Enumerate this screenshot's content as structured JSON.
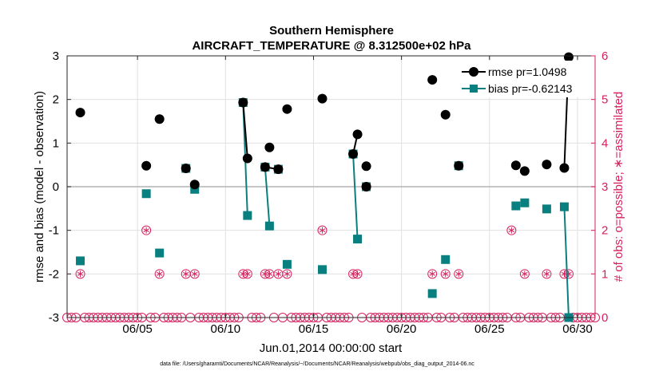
{
  "chart_data": {
    "type": "line",
    "title": "Southern Hemisphere",
    "subtitle": "AIRCRAFT_TEMPERATURE @ 8.312500e+02 hPa",
    "xlabel": "Jun.01,2014 00:00:00 start",
    "ylabel": "rmse and bias (model - observation)",
    "ylabel_right": "# of obs: o=possible; ∗=assimilated",
    "footnote": "data file: /Users/gharamti/Documents/NCAR/Reanalysis/~/Documents/NCAR/Reanalysis/webpub/obs_diag_output_2014-06.nc",
    "xlim": [
      1,
      31
    ],
    "ylim": [
      -3,
      3
    ],
    "ylim_right": [
      0,
      6
    ],
    "x_ticks": [
      5,
      10,
      15,
      20,
      25,
      30
    ],
    "x_tick_labels": [
      "06/05",
      "06/10",
      "06/15",
      "06/20",
      "06/25",
      "06/30"
    ],
    "y_ticks": [
      -3,
      -2,
      -1,
      0,
      1,
      2,
      3
    ],
    "y_tick_labels": [
      "-3",
      "-2",
      "-1",
      "0",
      "1",
      "2",
      "3"
    ],
    "y2_ticks": [
      0,
      1,
      2,
      3,
      4,
      5,
      6
    ],
    "y2_tick_labels": [
      "0",
      "1",
      "2",
      "3",
      "4",
      "5",
      "6"
    ],
    "colors": {
      "rmse": "#000000",
      "bias": "#0a7f7f",
      "obs": "#d6205e",
      "zero_line": "#b3b3b3",
      "grid": "#e0e0e0"
    },
    "legend_position": "top-right",
    "series": [
      {
        "name": "rmse pr=1.0498",
        "axis": "left",
        "marker": "circle",
        "points": [
          [
            1.75,
            1.7
          ],
          [
            5.5,
            0.48
          ],
          [
            6.25,
            1.55
          ],
          [
            7.75,
            0.42
          ],
          [
            8.25,
            0.05
          ],
          [
            11.0,
            1.93
          ],
          [
            11.25,
            0.65
          ],
          [
            12.25,
            0.45
          ],
          [
            12.5,
            0.9
          ],
          [
            13.0,
            0.4
          ],
          [
            13.5,
            1.78
          ],
          [
            15.5,
            2.02
          ],
          [
            17.25,
            0.75
          ],
          [
            17.5,
            1.2
          ],
          [
            18.0,
            0.47
          ],
          [
            18.0,
            0.0
          ],
          [
            21.75,
            2.45
          ],
          [
            22.5,
            1.65
          ],
          [
            23.25,
            0.48
          ],
          [
            26.5,
            0.49
          ],
          [
            27.0,
            0.36
          ],
          [
            28.25,
            0.51
          ],
          [
            29.25,
            0.43
          ],
          [
            29.5,
            2.97
          ]
        ],
        "segments": [
          [
            5,
            6
          ],
          [
            7,
            9
          ],
          [
            12,
            13
          ],
          [
            22,
            23
          ]
        ]
      },
      {
        "name": "bias pr=-0.62143",
        "axis": "left",
        "marker": "square",
        "points": [
          [
            1.75,
            -1.7
          ],
          [
            5.5,
            -0.16
          ],
          [
            6.25,
            -1.52
          ],
          [
            7.75,
            0.42
          ],
          [
            8.25,
            -0.06
          ],
          [
            11.0,
            1.93
          ],
          [
            11.25,
            -0.66
          ],
          [
            12.25,
            0.45
          ],
          [
            12.5,
            -0.9
          ],
          [
            13.0,
            0.4
          ],
          [
            13.5,
            -1.78
          ],
          [
            15.5,
            -1.9
          ],
          [
            17.25,
            0.75
          ],
          [
            17.5,
            -1.2
          ],
          [
            18.0,
            0.0
          ],
          [
            21.75,
            -2.45
          ],
          [
            22.5,
            -1.67
          ],
          [
            23.25,
            0.48
          ],
          [
            26.5,
            -0.44
          ],
          [
            27.0,
            -0.37
          ],
          [
            28.25,
            -0.51
          ],
          [
            29.25,
            -0.46
          ],
          [
            29.5,
            -3.0
          ]
        ],
        "segments": [
          [
            5,
            6
          ],
          [
            7,
            8
          ],
          [
            12,
            13
          ],
          [
            21,
            22
          ]
        ]
      },
      {
        "name": "obs possible",
        "axis": "right",
        "marker": "circle-open",
        "points": [
          [
            1.0,
            0
          ],
          [
            1.25,
            0
          ],
          [
            1.5,
            0
          ],
          [
            1.75,
            1
          ],
          [
            2.0,
            0
          ],
          [
            2.25,
            0
          ],
          [
            2.5,
            0
          ],
          [
            2.75,
            0
          ],
          [
            3.0,
            0
          ],
          [
            3.25,
            0
          ],
          [
            3.5,
            0
          ],
          [
            3.75,
            0
          ],
          [
            4.0,
            0
          ],
          [
            4.25,
            0
          ],
          [
            4.5,
            0
          ],
          [
            4.75,
            0
          ],
          [
            5.0,
            0
          ],
          [
            5.25,
            0
          ],
          [
            5.5,
            2
          ],
          [
            5.75,
            0
          ],
          [
            6.0,
            0
          ],
          [
            6.25,
            1
          ],
          [
            6.5,
            0
          ],
          [
            6.75,
            0
          ],
          [
            7.0,
            0
          ],
          [
            7.25,
            0
          ],
          [
            7.5,
            0
          ],
          [
            7.75,
            1
          ],
          [
            8.0,
            0
          ],
          [
            8.25,
            1
          ],
          [
            8.5,
            0
          ],
          [
            8.75,
            0
          ],
          [
            9.0,
            0
          ],
          [
            9.25,
            0
          ],
          [
            9.5,
            0
          ],
          [
            9.75,
            0
          ],
          [
            10.0,
            0
          ],
          [
            10.25,
            0
          ],
          [
            10.5,
            0
          ],
          [
            10.75,
            0
          ],
          [
            11.0,
            1
          ],
          [
            11.25,
            1
          ],
          [
            11.5,
            0
          ],
          [
            11.75,
            0
          ],
          [
            12.0,
            0
          ],
          [
            12.25,
            1
          ],
          [
            12.5,
            1
          ],
          [
            12.75,
            0
          ],
          [
            13.0,
            1
          ],
          [
            13.25,
            0
          ],
          [
            13.5,
            1
          ],
          [
            13.75,
            0
          ],
          [
            14.0,
            0
          ],
          [
            14.25,
            0
          ],
          [
            14.5,
            0
          ],
          [
            14.75,
            0
          ],
          [
            15.0,
            0
          ],
          [
            15.25,
            0
          ],
          [
            15.5,
            2
          ],
          [
            15.75,
            0
          ],
          [
            16.0,
            0
          ],
          [
            16.25,
            0
          ],
          [
            16.5,
            0
          ],
          [
            16.75,
            0
          ],
          [
            17.0,
            0
          ],
          [
            17.25,
            1
          ],
          [
            17.5,
            1
          ],
          [
            17.75,
            0
          ],
          [
            18.0,
            3
          ],
          [
            18.25,
            0
          ],
          [
            18.5,
            0
          ],
          [
            18.75,
            0
          ],
          [
            19.0,
            0
          ],
          [
            19.25,
            0
          ],
          [
            19.5,
            0
          ],
          [
            19.75,
            0
          ],
          [
            20.0,
            0
          ],
          [
            20.25,
            0
          ],
          [
            20.5,
            0
          ],
          [
            20.75,
            0
          ],
          [
            21.0,
            0
          ],
          [
            21.25,
            0
          ],
          [
            21.5,
            0
          ],
          [
            21.75,
            1
          ],
          [
            22.0,
            0
          ],
          [
            22.25,
            0
          ],
          [
            22.5,
            1
          ],
          [
            22.75,
            0
          ],
          [
            23.0,
            0
          ],
          [
            23.25,
            1
          ],
          [
            23.5,
            0
          ],
          [
            23.75,
            0
          ],
          [
            24.0,
            0
          ],
          [
            24.25,
            0
          ],
          [
            24.5,
            0
          ],
          [
            24.75,
            0
          ],
          [
            25.0,
            0
          ],
          [
            25.25,
            0
          ],
          [
            25.5,
            0
          ],
          [
            25.75,
            0
          ],
          [
            26.0,
            0
          ],
          [
            26.25,
            2
          ],
          [
            26.5,
            0
          ],
          [
            26.75,
            0
          ],
          [
            27.0,
            1
          ],
          [
            27.25,
            0
          ],
          [
            27.5,
            0
          ],
          [
            27.75,
            0
          ],
          [
            28.0,
            0
          ],
          [
            28.25,
            1
          ],
          [
            28.5,
            0
          ],
          [
            28.75,
            0
          ],
          [
            29.0,
            0
          ],
          [
            29.25,
            1
          ],
          [
            29.5,
            1
          ],
          [
            29.75,
            0
          ],
          [
            30.0,
            0
          ],
          [
            30.25,
            0
          ],
          [
            30.5,
            0
          ],
          [
            30.75,
            0
          ],
          [
            31.0,
            0
          ]
        ]
      },
      {
        "name": "obs assimilated",
        "axis": "right",
        "marker": "asterisk",
        "points": [
          [
            1.75,
            1
          ],
          [
            5.5,
            2
          ],
          [
            6.25,
            1
          ],
          [
            7.75,
            1
          ],
          [
            8.25,
            1
          ],
          [
            11.0,
            1
          ],
          [
            11.25,
            1
          ],
          [
            12.25,
            1
          ],
          [
            12.5,
            1
          ],
          [
            13.0,
            1
          ],
          [
            13.5,
            1
          ],
          [
            15.5,
            2
          ],
          [
            17.25,
            1
          ],
          [
            17.5,
            1
          ],
          [
            18.0,
            3
          ],
          [
            21.75,
            1
          ],
          [
            22.5,
            1
          ],
          [
            23.25,
            1
          ],
          [
            26.25,
            2
          ],
          [
            27.0,
            1
          ],
          [
            28.25,
            1
          ],
          [
            29.25,
            1
          ],
          [
            29.5,
            1
          ]
        ]
      }
    ]
  }
}
